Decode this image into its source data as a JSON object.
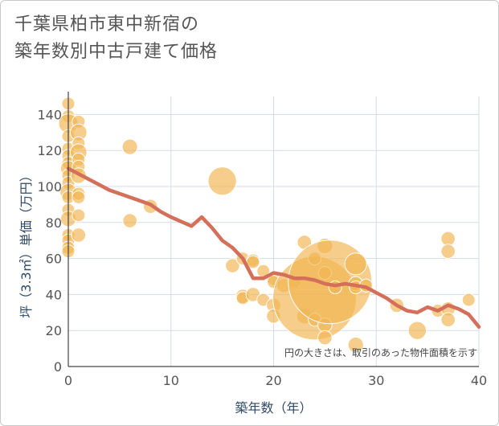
{
  "chart_data": {
    "type": "scatter",
    "title_line1": "千葉県柏市東中新宿の",
    "title_line2": "築年数別中古戸建て価格",
    "xlabel": "築年数（年）",
    "ylabel": "坪（3.3㎡）単価（万円）",
    "xlim": [
      0,
      40
    ],
    "ylim": [
      0,
      150
    ],
    "x_ticks": [
      "0",
      "10",
      "20",
      "30",
      "40"
    ],
    "x_tick_values": [
      0,
      10,
      20,
      30,
      40
    ],
    "y_ticks": [
      "0",
      "20",
      "40",
      "60",
      "80",
      "100",
      "120",
      "140"
    ],
    "y_tick_values": [
      0,
      20,
      40,
      60,
      80,
      100,
      120,
      140
    ],
    "note": "円の大きさは、取引のあった物件面積を示す",
    "bubble_color": "#f2b552",
    "line_color": "#d4705a",
    "grid": true,
    "bubbles": [
      {
        "x": 0,
        "y": 146,
        "s": 1
      },
      {
        "x": 0,
        "y": 139,
        "s": 1
      },
      {
        "x": 0,
        "y": 135,
        "s": 1.5
      },
      {
        "x": 0,
        "y": 128,
        "s": 1
      },
      {
        "x": 0,
        "y": 121,
        "s": 1
      },
      {
        "x": 0,
        "y": 117,
        "s": 1
      },
      {
        "x": 0,
        "y": 113,
        "s": 1
      },
      {
        "x": 0,
        "y": 110,
        "s": 1.2
      },
      {
        "x": 0,
        "y": 106,
        "s": 1
      },
      {
        "x": 0,
        "y": 102,
        "s": 1
      },
      {
        "x": 0,
        "y": 97,
        "s": 1.3
      },
      {
        "x": 0,
        "y": 94,
        "s": 1
      },
      {
        "x": 0,
        "y": 87,
        "s": 1
      },
      {
        "x": 0,
        "y": 82,
        "s": 1.2
      },
      {
        "x": 0,
        "y": 73,
        "s": 1
      },
      {
        "x": 0,
        "y": 70,
        "s": 1
      },
      {
        "x": 0,
        "y": 66,
        "s": 1
      },
      {
        "x": 0,
        "y": 64,
        "s": 1
      },
      {
        "x": 1,
        "y": 136,
        "s": 1
      },
      {
        "x": 1,
        "y": 130,
        "s": 1.3
      },
      {
        "x": 1,
        "y": 124,
        "s": 1
      },
      {
        "x": 1,
        "y": 119,
        "s": 1.3
      },
      {
        "x": 1,
        "y": 115,
        "s": 1
      },
      {
        "x": 1,
        "y": 111,
        "s": 1
      },
      {
        "x": 1,
        "y": 106,
        "s": 1.2
      },
      {
        "x": 1,
        "y": 96,
        "s": 1
      },
      {
        "x": 1,
        "y": 94,
        "s": 1
      },
      {
        "x": 1,
        "y": 84,
        "s": 1
      },
      {
        "x": 1,
        "y": 73,
        "s": 1.1
      },
      {
        "x": 6,
        "y": 122,
        "s": 1.2
      },
      {
        "x": 6,
        "y": 81,
        "s": 1.1
      },
      {
        "x": 8,
        "y": 89,
        "s": 1.1
      },
      {
        "x": 15,
        "y": 103,
        "s": 2.2
      },
      {
        "x": 16,
        "y": 56,
        "s": 1.1
      },
      {
        "x": 17,
        "y": 60,
        "s": 1
      },
      {
        "x": 17,
        "y": 39,
        "s": 1.1
      },
      {
        "x": 17,
        "y": 38,
        "s": 1
      },
      {
        "x": 18,
        "y": 59,
        "s": 1
      },
      {
        "x": 18,
        "y": 58,
        "s": 1
      },
      {
        "x": 18,
        "y": 40,
        "s": 1.1
      },
      {
        "x": 19,
        "y": 53,
        "s": 1
      },
      {
        "x": 19,
        "y": 37,
        "s": 1
      },
      {
        "x": 20,
        "y": 49,
        "s": 1.1
      },
      {
        "x": 20,
        "y": 47,
        "s": 1
      },
      {
        "x": 20,
        "y": 34,
        "s": 1.1
      },
      {
        "x": 20,
        "y": 28,
        "s": 1.1
      },
      {
        "x": 21,
        "y": 45,
        "s": 1.1
      },
      {
        "x": 22,
        "y": 47,
        "s": 1
      },
      {
        "x": 23,
        "y": 69,
        "s": 1.1
      },
      {
        "x": 23,
        "y": 28,
        "s": 1.2
      },
      {
        "x": 24,
        "y": 38,
        "s": 6.5
      },
      {
        "x": 24,
        "y": 60,
        "s": 1
      },
      {
        "x": 24,
        "y": 26,
        "s": 1
      },
      {
        "x": 25,
        "y": 67,
        "s": 1.2
      },
      {
        "x": 25,
        "y": 52,
        "s": 1
      },
      {
        "x": 25,
        "y": 23,
        "s": 1.1
      },
      {
        "x": 25,
        "y": 16,
        "s": 1.1
      },
      {
        "x": 25.5,
        "y": 47,
        "s": 6.5
      },
      {
        "x": 26,
        "y": 44,
        "s": 1
      },
      {
        "x": 28,
        "y": 57,
        "s": 1.7
      },
      {
        "x": 28,
        "y": 46,
        "s": 1.1
      },
      {
        "x": 28,
        "y": 44,
        "s": 1
      },
      {
        "x": 28,
        "y": 12,
        "s": 1.2
      },
      {
        "x": 29,
        "y": 45,
        "s": 1
      },
      {
        "x": 32,
        "y": 34,
        "s": 1.1
      },
      {
        "x": 34,
        "y": 20,
        "s": 1.4
      },
      {
        "x": 36,
        "y": 31,
        "s": 1
      },
      {
        "x": 37,
        "y": 71,
        "s": 1.1
      },
      {
        "x": 37,
        "y": 64,
        "s": 1.1
      },
      {
        "x": 37,
        "y": 32,
        "s": 1.1
      },
      {
        "x": 37,
        "y": 26,
        "s": 1.1
      },
      {
        "x": 39,
        "y": 37,
        "s": 1
      }
    ],
    "trend_x": [
      0,
      2,
      4,
      6,
      8,
      9,
      10,
      12,
      13,
      14,
      15,
      16,
      17,
      18,
      19,
      20,
      21,
      22,
      23,
      24,
      25,
      26,
      27,
      28,
      29,
      30,
      31,
      32,
      33,
      34,
      35,
      36,
      37,
      38,
      39,
      40
    ],
    "trend_y": [
      110,
      104,
      98,
      94,
      90,
      86,
      83,
      78,
      83,
      77,
      70,
      66,
      60,
      49,
      49,
      52,
      51,
      49,
      49,
      48,
      46,
      45,
      46,
      45,
      44,
      41,
      38,
      34,
      31,
      30,
      33,
      31,
      34,
      32,
      29,
      22
    ]
  }
}
